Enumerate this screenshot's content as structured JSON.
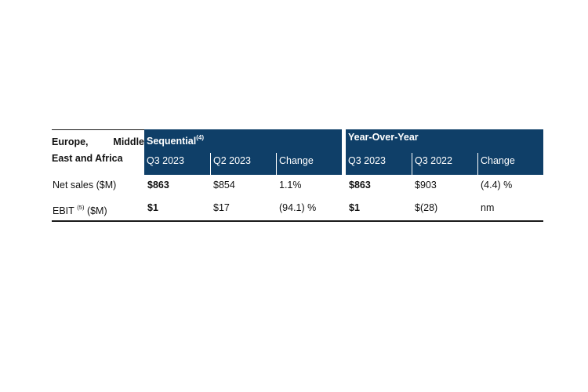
{
  "table": {
    "region_line1_left": "Europe,",
    "region_line1_right": "Middle",
    "region_line2": "East and Africa",
    "sequential_title": "Sequential",
    "sequential_note": "(4)",
    "yoy_title": "Year-Over-Year",
    "headers": {
      "seq_q3_2023": "Q3 2023",
      "seq_q2_2023": "Q2 2023",
      "seq_change": "Change",
      "yoy_q3_2023": "Q3 2023",
      "yoy_q3_2022": "Q3 2022",
      "yoy_change": "Change"
    },
    "rows": [
      {
        "label": "Net sales ($M)",
        "label_note": "",
        "seq_q3_2023": "$863",
        "seq_q2_2023": "$854",
        "seq_change": "1.1%",
        "yoy_q3_2023": "$863",
        "yoy_q3_2022": "$903",
        "yoy_change": "(4.4) %"
      },
      {
        "label_prefix": "EBIT",
        "label_note": "(5)",
        "label_suffix": "($M)",
        "seq_q3_2023": "$1",
        "seq_q2_2023": "$17",
        "seq_change": "(94.1) %",
        "yoy_q3_2023": "$1",
        "yoy_q3_2022": "$(28)",
        "yoy_change": "nm"
      }
    ]
  }
}
